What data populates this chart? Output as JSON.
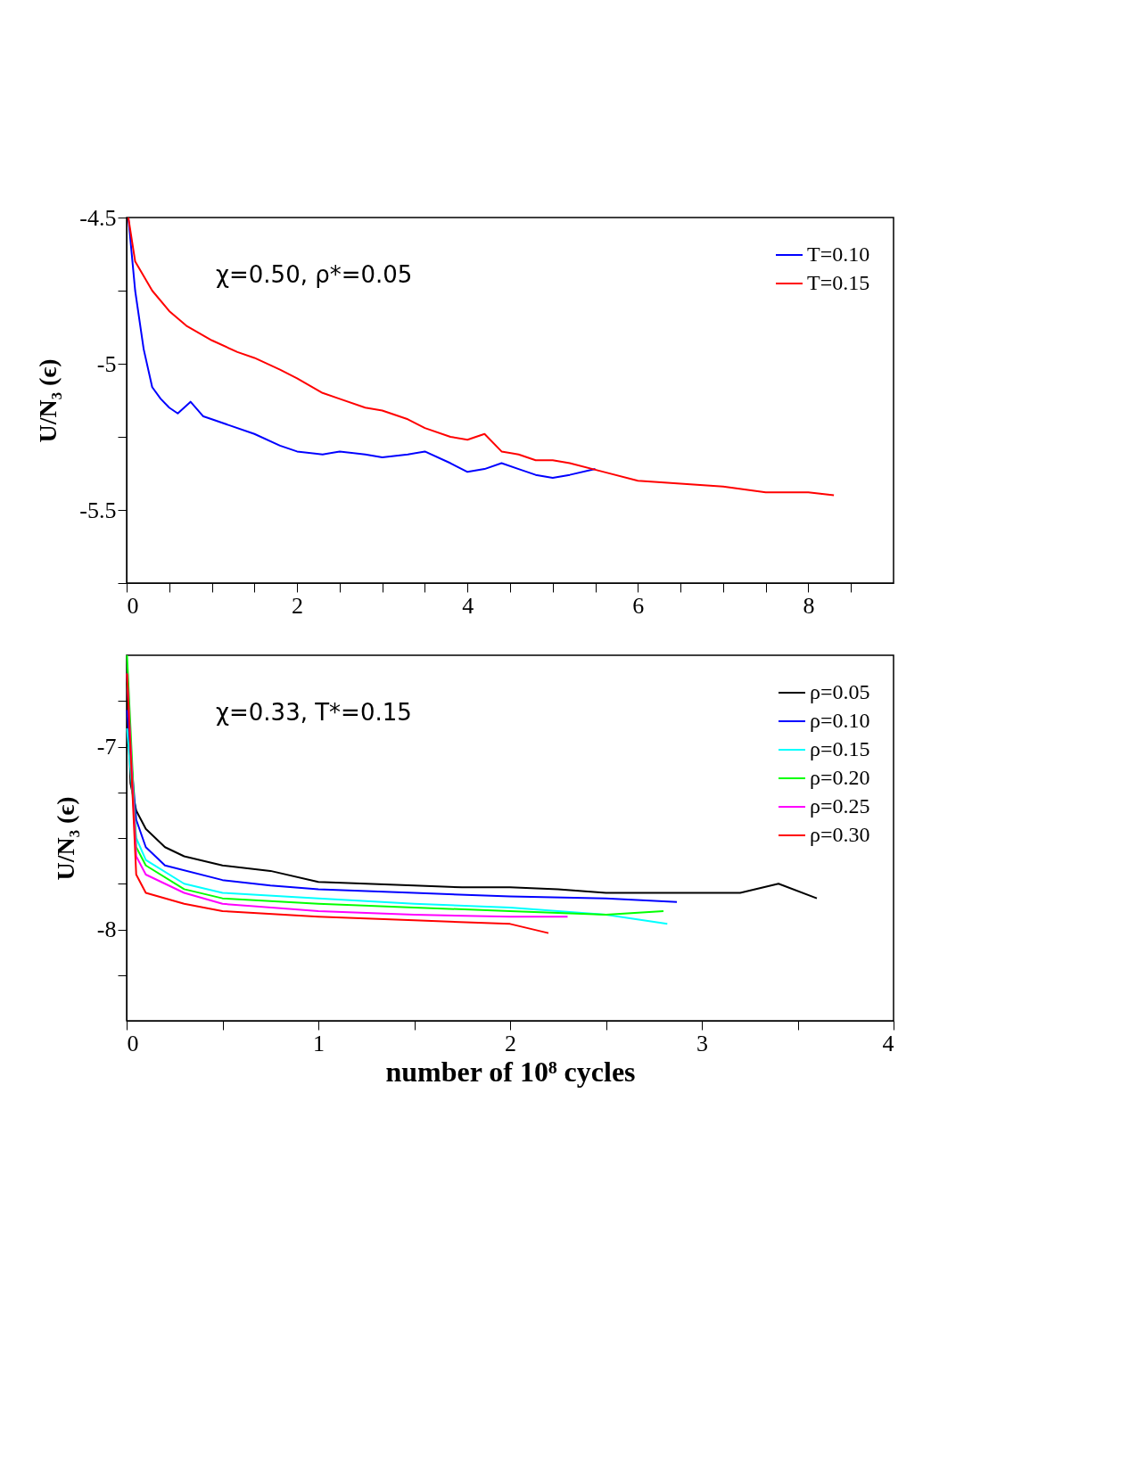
{
  "chart_data": [
    {
      "type": "line",
      "ylabel": "U/N₃   (ϵ)",
      "annotations": [
        "χ=0.50,  ρ*=0.05"
      ],
      "legend": "top right",
      "grid": false,
      "marker": "none",
      "line_style": "solid",
      "xlim": [
        0,
        9
      ],
      "ylim": [
        -5.75,
        -4.5
      ],
      "xticks": [
        0,
        {
          "value": 0.5,
          "label": null
        },
        {
          "value": 1,
          "label": null
        },
        {
          "value": 1.5,
          "label": null
        },
        2,
        {
          "value": 2.5,
          "label": null
        },
        {
          "value": 3,
          "label": null
        },
        {
          "value": 3.5,
          "label": null
        },
        4,
        {
          "value": 4.5,
          "label": null
        },
        {
          "value": 5,
          "label": null
        },
        {
          "value": 5.5,
          "label": null
        },
        6,
        {
          "value": 6.5,
          "label": null
        },
        {
          "value": 7,
          "label": null
        },
        {
          "value": 7.5,
          "label": null
        },
        8,
        {
          "value": 8.5,
          "label": null
        }
      ],
      "yticks": [
        -4.5,
        {
          "value": -4.75,
          "label": null
        },
        -5,
        {
          "value": -5.25,
          "label": null
        },
        -5.5,
        {
          "value": -5.75,
          "label": null
        }
      ],
      "series": [
        {
          "name": "T=0.10",
          "color": "#0000ff",
          "x": [
            0.02,
            0.1,
            0.2,
            0.3,
            0.4,
            0.5,
            0.6,
            0.75,
            0.9,
            1.0,
            1.2,
            1.5,
            1.8,
            2.0,
            2.3,
            2.5,
            2.8,
            3.0,
            3.3,
            3.5,
            3.8,
            4.0,
            4.2,
            4.4,
            4.6,
            4.8,
            5.0,
            5.2,
            5.5
          ],
          "values": [
            -4.5,
            -4.75,
            -4.95,
            -5.08,
            -5.12,
            -5.15,
            -5.17,
            -5.13,
            -5.18,
            -5.19,
            -5.21,
            -5.24,
            -5.28,
            -5.3,
            -5.31,
            -5.3,
            -5.31,
            -5.32,
            -5.31,
            -5.3,
            -5.34,
            -5.37,
            -5.36,
            -5.34,
            -5.36,
            -5.38,
            -5.39,
            -5.38,
            -5.36
          ]
        },
        {
          "name": "T=0.15",
          "color": "#ff0000",
          "x": [
            0.02,
            0.1,
            0.3,
            0.5,
            0.7,
            1.0,
            1.3,
            1.5,
            1.8,
            2.0,
            2.3,
            2.5,
            2.8,
            3.0,
            3.3,
            3.5,
            3.8,
            4.0,
            4.2,
            4.4,
            4.6,
            4.8,
            5.0,
            5.2,
            5.6,
            6.0,
            6.5,
            7.0,
            7.5,
            8.0,
            8.3
          ],
          "values": [
            -4.5,
            -4.65,
            -4.75,
            -4.82,
            -4.87,
            -4.92,
            -4.96,
            -4.98,
            -5.02,
            -5.05,
            -5.1,
            -5.12,
            -5.15,
            -5.16,
            -5.19,
            -5.22,
            -5.25,
            -5.26,
            -5.24,
            -5.3,
            -5.31,
            -5.33,
            -5.33,
            -5.34,
            -5.37,
            -5.4,
            -5.41,
            -5.42,
            -5.44,
            -5.44,
            -5.45
          ]
        }
      ]
    },
    {
      "type": "line",
      "xlabel": "number of 10⁸ cycles",
      "ylabel": "U/N₃   (ϵ)",
      "annotations": [
        "χ=0.33,  T*=0.15"
      ],
      "legend": "top right",
      "grid": false,
      "marker": "none",
      "line_style": "solid",
      "xlim": [
        0,
        4
      ],
      "ylim": [
        -8.5,
        -6.5
      ],
      "xticks": [
        0,
        {
          "value": 0.5,
          "label": null
        },
        1,
        {
          "value": 1.5,
          "label": null
        },
        2,
        {
          "value": 2.5,
          "label": null
        },
        3,
        {
          "value": 3.5,
          "label": null
        },
        4
      ],
      "yticks": [
        {
          "value": -6.75,
          "label": null
        },
        -7,
        {
          "value": -7.25,
          "label": null
        },
        {
          "value": -7.5,
          "label": null
        },
        {
          "value": -7.75,
          "label": null
        },
        -8,
        {
          "value": -8.25,
          "label": null
        }
      ],
      "series": [
        {
          "name": "ρ=0.05",
          "color": "#000000",
          "x": [
            0.002,
            0.02,
            0.05,
            0.1,
            0.2,
            0.3,
            0.5,
            0.75,
            1.0,
            1.25,
            1.5,
            1.75,
            2.0,
            2.25,
            2.5,
            2.75,
            3.0,
            3.2,
            3.4,
            3.6
          ],
          "values": [
            -6.6,
            -7.2,
            -7.35,
            -7.45,
            -7.55,
            -7.6,
            -7.65,
            -7.68,
            -7.74,
            -7.75,
            -7.76,
            -7.77,
            -7.77,
            -7.78,
            -7.8,
            -7.8,
            -7.8,
            -7.8,
            -7.75,
            -7.83
          ]
        },
        {
          "name": "ρ=0.10",
          "color": "#0000ff",
          "x": [
            0.002,
            0.05,
            0.1,
            0.2,
            0.5,
            0.75,
            1.0,
            1.5,
            2.0,
            2.5,
            2.87
          ],
          "values": [
            -6.8,
            -7.4,
            -7.55,
            -7.65,
            -7.73,
            -7.76,
            -7.78,
            -7.8,
            -7.82,
            -7.83,
            -7.85
          ]
        },
        {
          "name": "ρ=0.15",
          "color": "#00ffff",
          "x": [
            0.002,
            0.05,
            0.1,
            0.3,
            0.5,
            1.0,
            1.5,
            2.0,
            2.5,
            2.82
          ],
          "values": [
            -6.9,
            -7.5,
            -7.62,
            -7.75,
            -7.8,
            -7.83,
            -7.86,
            -7.88,
            -7.92,
            -7.97
          ]
        },
        {
          "name": "ρ=0.20",
          "color": "#00ff00",
          "x": [
            0.002,
            0.05,
            0.1,
            0.3,
            0.5,
            1.0,
            1.5,
            2.0,
            2.5,
            2.8
          ],
          "values": [
            -6.5,
            -7.55,
            -7.65,
            -7.78,
            -7.83,
            -7.86,
            -7.88,
            -7.9,
            -7.92,
            -7.9
          ]
        },
        {
          "name": "ρ=0.25",
          "color": "#ff00ff",
          "x": [
            0.002,
            0.05,
            0.1,
            0.3,
            0.5,
            1.0,
            1.5,
            2.0,
            2.3
          ],
          "values": [
            -6.6,
            -7.6,
            -7.7,
            -7.8,
            -7.86,
            -7.9,
            -7.92,
            -7.93,
            -7.93
          ]
        },
        {
          "name": "ρ=0.30",
          "color": "#ff0000",
          "x": [
            0.002,
            0.05,
            0.1,
            0.3,
            0.5,
            1.0,
            1.5,
            2.0,
            2.2
          ],
          "values": [
            -6.6,
            -7.7,
            -7.8,
            -7.86,
            -7.9,
            -7.93,
            -7.95,
            -7.97,
            -8.02
          ]
        }
      ]
    }
  ]
}
